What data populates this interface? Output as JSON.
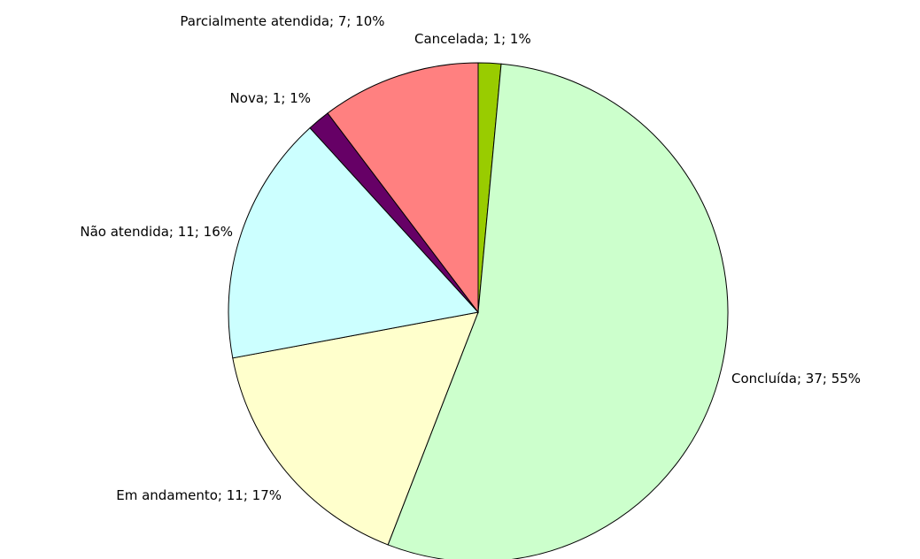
{
  "chart_data": {
    "type": "pie",
    "values": [
      1,
      37,
      11,
      11,
      1,
      7
    ],
    "value_labels": [
      "Cancelada; 1; 1%",
      "Concluída; 37; 55%",
      "Em andamento; 11; 17%",
      "Não atendida; 11; 16%",
      "Nova; 1; 1%",
      "Parcialmente atendida; 7; 10%"
    ],
    "colors": [
      "#99cc00",
      "#ccffcc",
      "#ffffcc",
      "#ccffff",
      "#660066",
      "#ff8080"
    ],
    "start_angle": 0,
    "direction": "clockwise"
  }
}
